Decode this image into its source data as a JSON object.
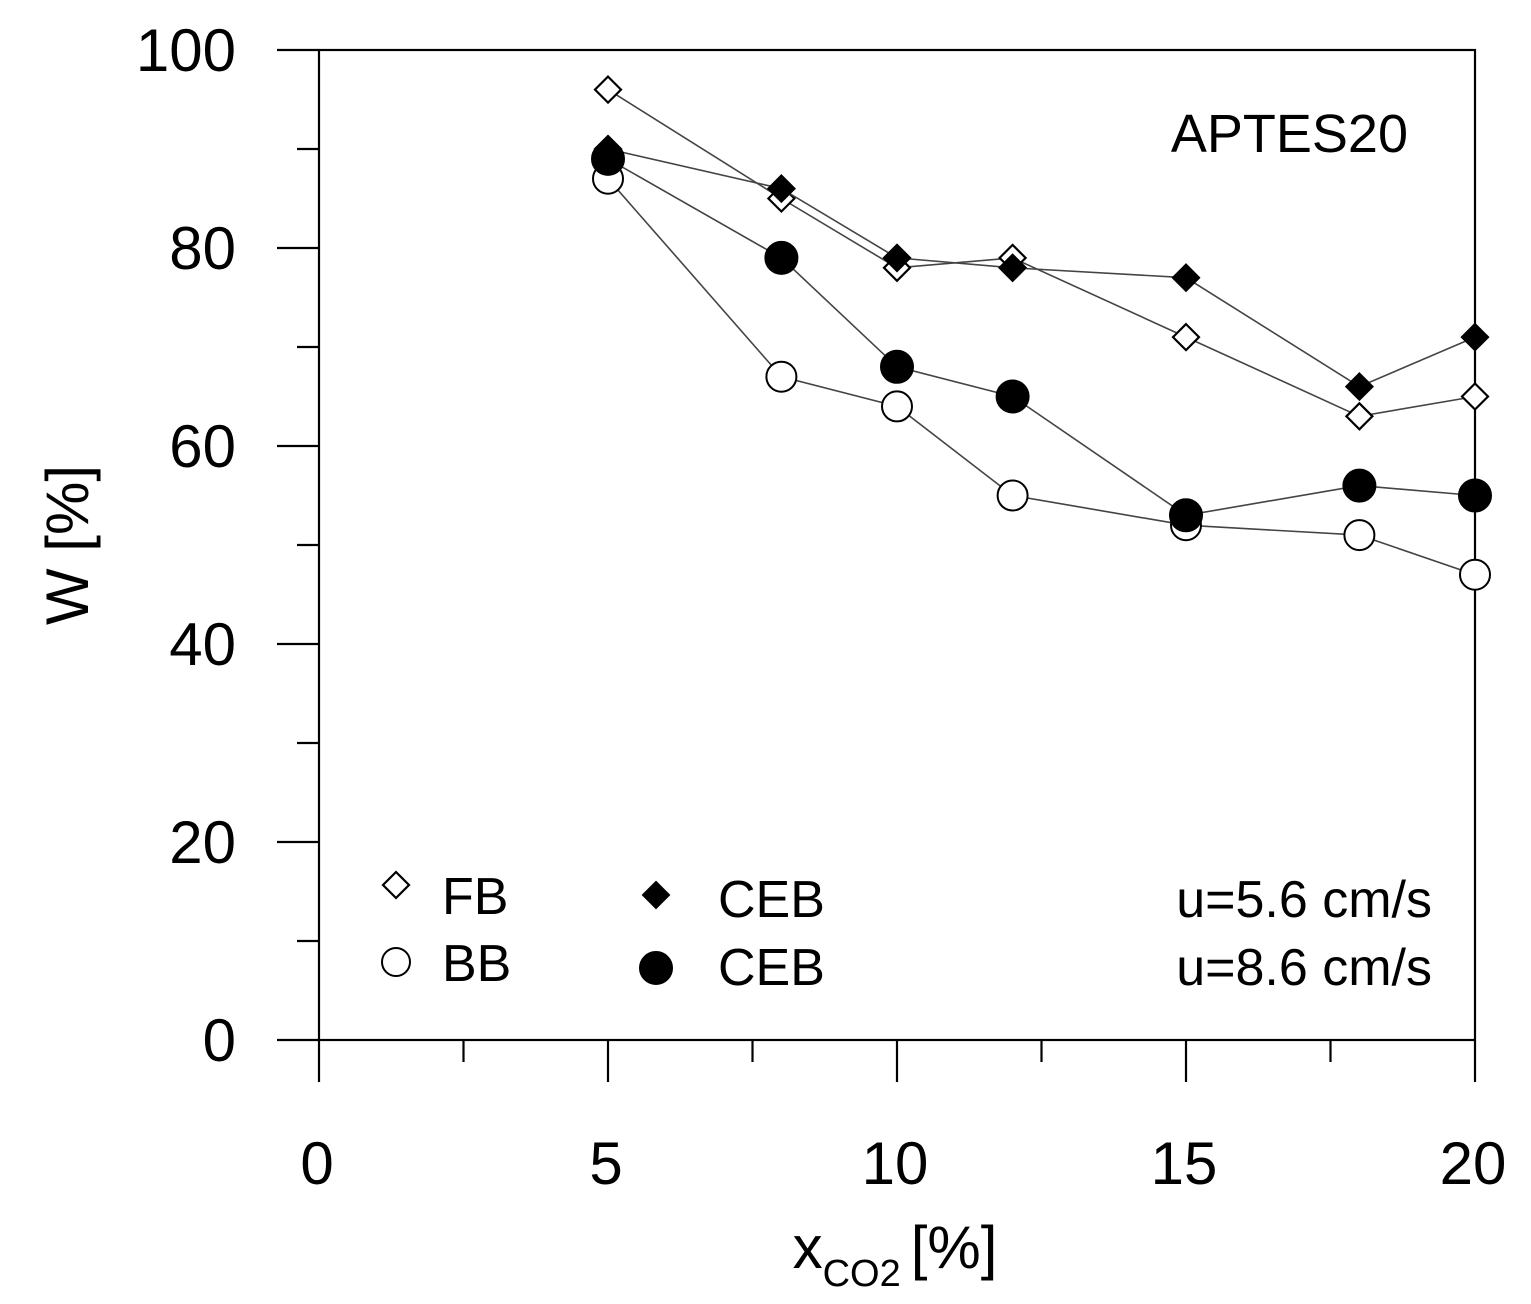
{
  "chart_data": {
    "type": "line",
    "annotation": "APTES20",
    "xlabel": {
      "main": "x",
      "sub": "CO2",
      "unit": "[%]"
    },
    "ylabel": "W [%]",
    "xlim": [
      0,
      20
    ],
    "ylim": [
      0,
      100
    ],
    "xticks": [
      0,
      5,
      10,
      15,
      20
    ],
    "yticks": [
      0,
      20,
      40,
      60,
      80,
      100
    ],
    "grid": false,
    "series": [
      {
        "name": "FB",
        "velocity": "u=5.6 cm/s",
        "marker": "diamond-open",
        "x": [
          5,
          8,
          10,
          12,
          15,
          18,
          20
        ],
        "y": [
          96,
          85,
          78,
          79,
          71,
          63,
          65
        ]
      },
      {
        "name": "CEB",
        "velocity": "u=5.6 cm/s",
        "marker": "diamond-filled",
        "x": [
          5,
          8,
          10,
          12,
          15,
          18,
          20
        ],
        "y": [
          90,
          86,
          79,
          78,
          77,
          66,
          71
        ]
      },
      {
        "name": "BB",
        "velocity": "u=8.6 cm/s",
        "marker": "circle-open",
        "x": [
          5,
          8,
          10,
          12,
          15,
          18,
          20
        ],
        "y": [
          87,
          67,
          64,
          55,
          52,
          51,
          47
        ]
      },
      {
        "name": "CEB",
        "velocity": "u=8.6 cm/s",
        "marker": "circle-filled",
        "x": [
          5,
          8,
          10,
          12,
          15,
          18,
          20
        ],
        "y": [
          89,
          79,
          68,
          65,
          53,
          56,
          55
        ]
      }
    ],
    "legend": {
      "placement": "bottom-left",
      "rows": [
        {
          "left": "FB",
          "right": "CEB",
          "velocity": "u=5.6 cm/s"
        },
        {
          "left": "BB",
          "right": "CEB",
          "velocity": "u=8.6 cm/s"
        }
      ]
    }
  }
}
